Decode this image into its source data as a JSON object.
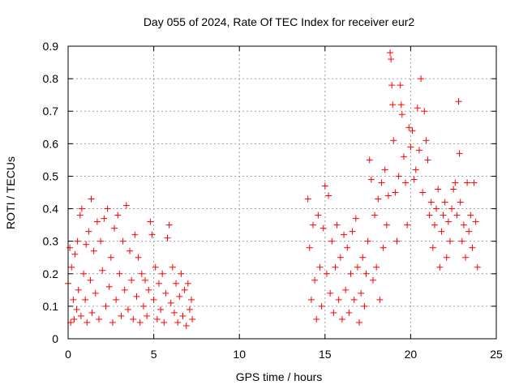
{
  "chart_data": {
    "type": "scatter",
    "title": "Day 055 of 2024, Rate Of TEC Index for receiver eur2",
    "xlabel": "GPS time / hours",
    "ylabel": "ROTI / TECUs",
    "xlim": [
      0,
      25
    ],
    "ylim": [
      0,
      0.9
    ],
    "x_ticks": [
      "0",
      "5",
      "10",
      "15",
      "20",
      "25"
    ],
    "y_ticks": [
      "0",
      "0.1",
      "0.2",
      "0.3",
      "0.4",
      "0.5",
      "0.6",
      "0.7",
      "0.8",
      "0.9"
    ],
    "grid": true,
    "marker": "+",
    "color": "#ff0000",
    "x_ticks_values": [
      0,
      5,
      10,
      15,
      20,
      25
    ],
    "y_ticks_values": [
      0,
      0.1,
      0.2,
      0.3,
      0.4,
      0.5,
      0.6,
      0.7,
      0.8,
      0.9
    ],
    "points": [
      [
        0.0,
        0.17
      ],
      [
        0.1,
        0.28
      ],
      [
        0.15,
        0.05
      ],
      [
        0.2,
        0.22
      ],
      [
        0.3,
        0.12
      ],
      [
        0.35,
        0.06
      ],
      [
        0.4,
        0.26
      ],
      [
        0.5,
        0.09
      ],
      [
        0.55,
        0.3
      ],
      [
        0.6,
        0.15
      ],
      [
        0.7,
        0.38
      ],
      [
        0.75,
        0.07
      ],
      [
        0.8,
        0.4
      ],
      [
        0.9,
        0.2
      ],
      [
        1.0,
        0.12
      ],
      [
        1.05,
        0.29
      ],
      [
        1.1,
        0.05
      ],
      [
        1.2,
        0.33
      ],
      [
        1.3,
        0.18
      ],
      [
        1.35,
        0.43
      ],
      [
        1.4,
        0.08
      ],
      [
        1.5,
        0.27
      ],
      [
        1.6,
        0.14
      ],
      [
        1.7,
        0.36
      ],
      [
        1.8,
        0.06
      ],
      [
        1.9,
        0.3
      ],
      [
        2.0,
        0.21
      ],
      [
        2.1,
        0.37
      ],
      [
        2.2,
        0.1
      ],
      [
        2.3,
        0.4
      ],
      [
        2.4,
        0.16
      ],
      [
        2.5,
        0.25
      ],
      [
        2.6,
        0.05
      ],
      [
        2.7,
        0.34
      ],
      [
        2.8,
        0.12
      ],
      [
        2.9,
        0.38
      ],
      [
        3.0,
        0.2
      ],
      [
        3.1,
        0.07
      ],
      [
        3.2,
        0.3
      ],
      [
        3.3,
        0.15
      ],
      [
        3.4,
        0.41
      ],
      [
        3.5,
        0.09
      ],
      [
        3.6,
        0.27
      ],
      [
        3.7,
        0.18
      ],
      [
        3.8,
        0.06
      ],
      [
        3.9,
        0.32
      ],
      [
        4.0,
        0.13
      ],
      [
        4.1,
        0.25
      ],
      [
        4.2,
        0.05
      ],
      [
        4.3,
        0.2
      ],
      [
        4.4,
        0.1
      ],
      [
        4.5,
        0.18
      ],
      [
        4.6,
        0.07
      ],
      [
        4.7,
        0.15
      ],
      [
        4.8,
        0.36
      ],
      [
        4.9,
        0.32
      ],
      [
        5.0,
        0.12
      ],
      [
        5.1,
        0.22
      ],
      [
        5.2,
        0.06
      ],
      [
        5.3,
        0.17
      ],
      [
        5.4,
        0.09
      ],
      [
        5.5,
        0.2
      ],
      [
        5.6,
        0.05
      ],
      [
        5.7,
        0.14
      ],
      [
        5.8,
        0.31
      ],
      [
        5.9,
        0.35
      ],
      [
        6.0,
        0.11
      ],
      [
        6.1,
        0.22
      ],
      [
        6.2,
        0.08
      ],
      [
        6.3,
        0.17
      ],
      [
        6.4,
        0.05
      ],
      [
        6.5,
        0.13
      ],
      [
        6.6,
        0.2
      ],
      [
        6.7,
        0.07
      ],
      [
        6.8,
        0.15
      ],
      [
        6.9,
        0.04
      ],
      [
        7.0,
        0.17
      ],
      [
        7.1,
        0.09
      ],
      [
        7.2,
        0.12
      ],
      [
        7.25,
        0.06
      ],
      [
        14.0,
        0.43
      ],
      [
        14.1,
        0.28
      ],
      [
        14.2,
        0.12
      ],
      [
        14.3,
        0.35
      ],
      [
        14.4,
        0.18
      ],
      [
        14.5,
        0.06
      ],
      [
        14.6,
        0.38
      ],
      [
        14.7,
        0.22
      ],
      [
        14.8,
        0.1
      ],
      [
        14.9,
        0.34
      ],
      [
        15.0,
        0.47
      ],
      [
        15.1,
        0.2
      ],
      [
        15.2,
        0.44
      ],
      [
        15.3,
        0.14
      ],
      [
        15.4,
        0.3
      ],
      [
        15.5,
        0.08
      ],
      [
        15.6,
        0.22
      ],
      [
        15.7,
        0.35
      ],
      [
        15.8,
        0.12
      ],
      [
        15.9,
        0.25
      ],
      [
        16.0,
        0.06
      ],
      [
        16.1,
        0.32
      ],
      [
        16.2,
        0.15
      ],
      [
        16.3,
        0.28
      ],
      [
        16.4,
        0.08
      ],
      [
        16.5,
        0.2
      ],
      [
        16.6,
        0.33
      ],
      [
        16.7,
        0.12
      ],
      [
        16.8,
        0.37
      ],
      [
        16.9,
        0.22
      ],
      [
        17.0,
        0.05
      ],
      [
        17.1,
        0.14
      ],
      [
        17.2,
        0.25
      ],
      [
        17.3,
        0.1
      ],
      [
        17.4,
        0.2
      ],
      [
        17.5,
        0.3
      ],
      [
        17.6,
        0.55
      ],
      [
        17.7,
        0.49
      ],
      [
        17.8,
        0.18
      ],
      [
        17.9,
        0.38
      ],
      [
        18.0,
        0.22
      ],
      [
        18.1,
        0.43
      ],
      [
        18.2,
        0.12
      ],
      [
        18.3,
        0.48
      ],
      [
        18.4,
        0.28
      ],
      [
        18.5,
        0.52
      ],
      [
        18.6,
        0.35
      ],
      [
        18.7,
        0.44
      ],
      [
        18.8,
        0.88
      ],
      [
        18.85,
        0.86
      ],
      [
        18.9,
        0.78
      ],
      [
        18.95,
        0.72
      ],
      [
        19.0,
        0.61
      ],
      [
        19.1,
        0.45
      ],
      [
        19.2,
        0.3
      ],
      [
        19.3,
        0.5
      ],
      [
        19.4,
        0.78
      ],
      [
        19.45,
        0.72
      ],
      [
        19.5,
        0.69
      ],
      [
        19.6,
        0.56
      ],
      [
        19.7,
        0.48
      ],
      [
        19.8,
        0.35
      ],
      [
        19.9,
        0.65
      ],
      [
        20.0,
        0.59
      ],
      [
        20.1,
        0.64
      ],
      [
        20.2,
        0.49
      ],
      [
        20.3,
        0.52
      ],
      [
        20.4,
        0.71
      ],
      [
        20.5,
        0.58
      ],
      [
        20.6,
        0.8
      ],
      [
        20.7,
        0.45
      ],
      [
        20.8,
        0.7
      ],
      [
        20.9,
        0.61
      ],
      [
        21.0,
        0.55
      ],
      [
        21.1,
        0.38
      ],
      [
        21.2,
        0.42
      ],
      [
        21.3,
        0.28
      ],
      [
        21.4,
        0.35
      ],
      [
        21.5,
        0.4
      ],
      [
        21.6,
        0.46
      ],
      [
        21.7,
        0.22
      ],
      [
        21.8,
        0.33
      ],
      [
        21.9,
        0.38
      ],
      [
        22.0,
        0.42
      ],
      [
        22.1,
        0.25
      ],
      [
        22.2,
        0.36
      ],
      [
        22.3,
        0.3
      ],
      [
        22.4,
        0.4
      ],
      [
        22.5,
        0.46
      ],
      [
        22.6,
        0.48
      ],
      [
        22.7,
        0.38
      ],
      [
        22.8,
        0.73
      ],
      [
        22.85,
        0.57
      ],
      [
        22.9,
        0.42
      ],
      [
        23.0,
        0.3
      ],
      [
        23.1,
        0.35
      ],
      [
        23.2,
        0.25
      ],
      [
        23.3,
        0.48
      ],
      [
        23.4,
        0.33
      ],
      [
        23.5,
        0.38
      ],
      [
        23.6,
        0.28
      ],
      [
        23.7,
        0.48
      ],
      [
        23.8,
        0.36
      ],
      [
        23.9,
        0.22
      ]
    ]
  }
}
